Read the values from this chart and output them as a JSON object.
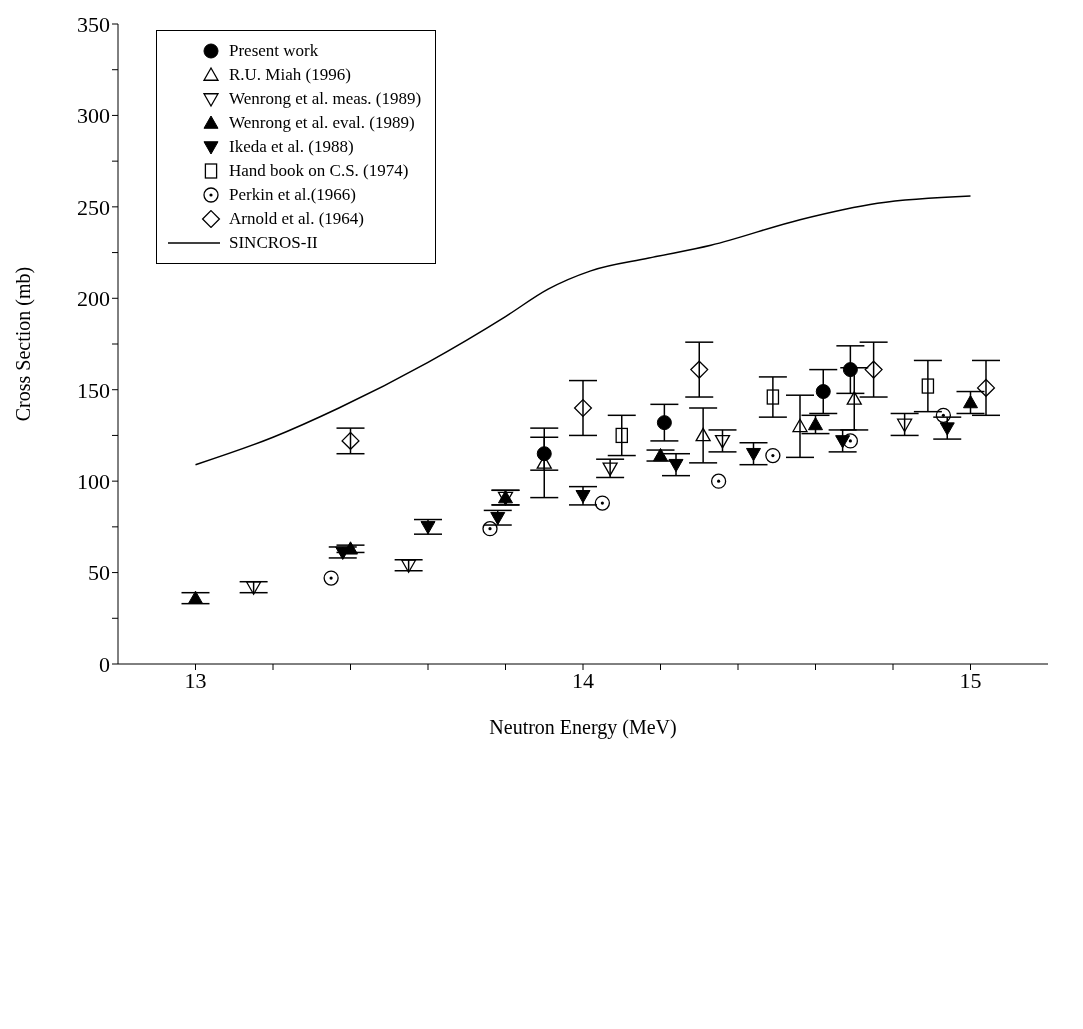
{
  "chart_data": {
    "type": "scatter",
    "xlabel": "Neutron  Energy (MeV)",
    "ylabel": "Cross Section (mb)",
    "xlim": [
      12.8,
      15.2
    ],
    "xticks": [
      13,
      {
        "value": 13.2,
        "label": null
      },
      {
        "value": 13.4,
        "label": null
      },
      {
        "value": 13.6,
        "label": null
      },
      {
        "value": 13.8,
        "label": null
      },
      14,
      {
        "value": 14.2,
        "label": null
      },
      {
        "value": 14.4,
        "label": null
      },
      {
        "value": 14.6,
        "label": null
      },
      {
        "value": 14.8,
        "label": null
      },
      15
    ],
    "ylim": [
      0,
      350
    ],
    "yticks": [
      0,
      {
        "value": 25,
        "label": null
      },
      50,
      {
        "value": 75,
        "label": null
      },
      100,
      {
        "value": 125,
        "label": null
      },
      150,
      {
        "value": 175,
        "label": null
      },
      200,
      {
        "value": 225,
        "label": null
      },
      250,
      {
        "value": 275,
        "label": null
      },
      300,
      {
        "value": 325,
        "label": null
      },
      350
    ],
    "grid": false,
    "legend": "top left",
    "series": [
      {
        "name": "Present work",
        "color": "#000000",
        "marker": "circle",
        "x": [
          13.9,
          14.21,
          14.62,
          14.69
        ],
        "values": [
          115,
          132,
          149,
          161
        ],
        "errors": [
          9,
          10,
          12,
          13
        ]
      },
      {
        "name": "R.U. Miah (1996)",
        "color": "#000000",
        "marker": "triangle-open",
        "x": [
          13.9,
          14.31,
          14.56,
          14.7
        ],
        "values": [
          110,
          125,
          130,
          145
        ],
        "errors": [
          19,
          15,
          17,
          17
        ]
      },
      {
        "name": "Wenrong et al. meas. (1989)",
        "color": "#000000",
        "marker": "triangle-down-open",
        "x": [
          13.15,
          13.55,
          13.8,
          14.07,
          14.36,
          14.83
        ],
        "values": [
          42,
          54,
          91,
          107,
          122,
          131
        ],
        "errors": [
          3,
          3,
          4,
          5,
          6,
          6
        ]
      },
      {
        "name": "Wenrong et al. eval. (1989)",
        "color": "#000000",
        "marker": "triangle",
        "x": [
          13.0,
          13.4,
          13.8,
          14.2,
          14.6,
          15.0
        ],
        "values": [
          36,
          63,
          91,
          114,
          131,
          143
        ],
        "errors": [
          3,
          2,
          4,
          3,
          5,
          6
        ]
      },
      {
        "name": "Ikeda et al. (1988)",
        "color": "#000000",
        "marker": "triangle-down",
        "x": [
          13.38,
          13.6,
          13.78,
          14.0,
          14.24,
          14.44,
          14.67,
          14.94
        ],
        "values": [
          61,
          75,
          80,
          92,
          109,
          115,
          122,
          129
        ],
        "errors": [
          3,
          4,
          4,
          5,
          6,
          6,
          6,
          6
        ]
      },
      {
        "name": "Hand book on C.S. (1974)",
        "color": "#000000",
        "marker": "square-open",
        "x": [
          14.1,
          14.49,
          14.89
        ],
        "values": [
          125,
          146,
          152
        ],
        "errors": [
          11,
          11,
          14
        ]
      },
      {
        "name": "Perkin et al.(1966)",
        "color": "#000000",
        "marker": "circle-dot",
        "x": [
          13.35,
          13.76,
          14.05,
          14.35,
          14.49,
          14.69,
          14.93
        ],
        "values": [
          47,
          74,
          88,
          100,
          114,
          122,
          136
        ]
      },
      {
        "name": "Arnold et al. (1964)",
        "color": "#000000",
        "marker": "diamond-open",
        "x": [
          13.4,
          14.0,
          14.3,
          14.75,
          15.04
        ],
        "values": [
          122,
          140,
          161,
          161,
          151
        ],
        "errors": [
          7,
          15,
          15,
          15,
          15
        ]
      },
      {
        "name": "SINCROS-II",
        "color": "#000000",
        "type": "line",
        "marker": "none",
        "line_style": "solid",
        "x": [
          13.0,
          13.2,
          13.37,
          13.6,
          13.8,
          13.91,
          14.02,
          14.17,
          14.33,
          14.56,
          14.76,
          15.0
        ],
        "values": [
          109,
          124,
          140,
          165,
          190,
          205,
          215,
          222,
          229,
          243,
          252,
          256
        ]
      }
    ]
  }
}
